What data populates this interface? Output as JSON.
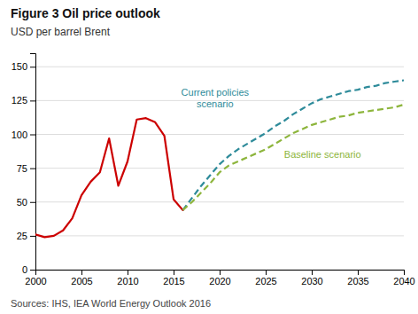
{
  "chart_data": {
    "type": "line",
    "title": "Figure 3 Oil price outlook",
    "subtitle": "USD per barrel Brent",
    "source": "Sources: IHS, IEA World Energy Outlook 2016",
    "series": [
      {
        "color": "#cc0000",
        "line_style": "solid",
        "x": [
          2000,
          2001,
          2002,
          2003,
          2004,
          2005,
          2006,
          2007,
          2008,
          2009,
          2010,
          2011,
          2012,
          2013,
          2014,
          2015,
          2016
        ],
        "values": [
          26,
          24,
          25,
          29,
          38,
          55,
          65,
          72,
          97,
          62,
          80,
          111,
          112,
          109,
          99,
          52,
          44
        ]
      },
      {
        "color": "#2e8b9a",
        "line_style": "dashed",
        "x": [
          2016,
          2017,
          2018,
          2019,
          2020,
          2021,
          2022,
          2023,
          2024,
          2025,
          2026,
          2027,
          2028,
          2029,
          2030,
          2031,
          2032,
          2033,
          2034,
          2035,
          2036,
          2037,
          2038,
          2039,
          2040
        ],
        "values": [
          44,
          53,
          62,
          70,
          78,
          84,
          89,
          93,
          97,
          101,
          106,
          110,
          115,
          119,
          123,
          126,
          128,
          130,
          132,
          133,
          135,
          136,
          138,
          139,
          140
        ]
      },
      {
        "color": "#8db53c",
        "line_style": "dashed",
        "x": [
          2016,
          2017,
          2018,
          2019,
          2020,
          2021,
          2022,
          2023,
          2024,
          2025,
          2026,
          2027,
          2028,
          2029,
          2030,
          2031,
          2032,
          2033,
          2034,
          2035,
          2036,
          2037,
          2038,
          2039,
          2040
        ],
        "values": [
          44,
          50,
          57,
          64,
          72,
          77,
          80,
          83,
          86,
          89,
          93,
          97,
          101,
          104,
          107,
          109,
          111,
          113,
          114,
          116,
          117,
          118,
          119,
          120,
          122
        ]
      }
    ],
    "annotations": [
      {
        "text": "Current policies\nscenario",
        "x": 2019.5,
        "y": 118,
        "color": "#2e8b9a"
      },
      {
        "text": "Baseline scenario",
        "x": 2027,
        "y": 90,
        "color": "#8db53c"
      }
    ],
    "xlim": [
      2000,
      2040
    ],
    "ylim": [
      0,
      160
    ],
    "xticks": [
      2000,
      2005,
      2010,
      2015,
      2020,
      2025,
      2030,
      2035,
      2040
    ],
    "yticks": [
      0,
      25,
      50,
      75,
      100,
      125,
      150
    ],
    "grid": "y"
  }
}
